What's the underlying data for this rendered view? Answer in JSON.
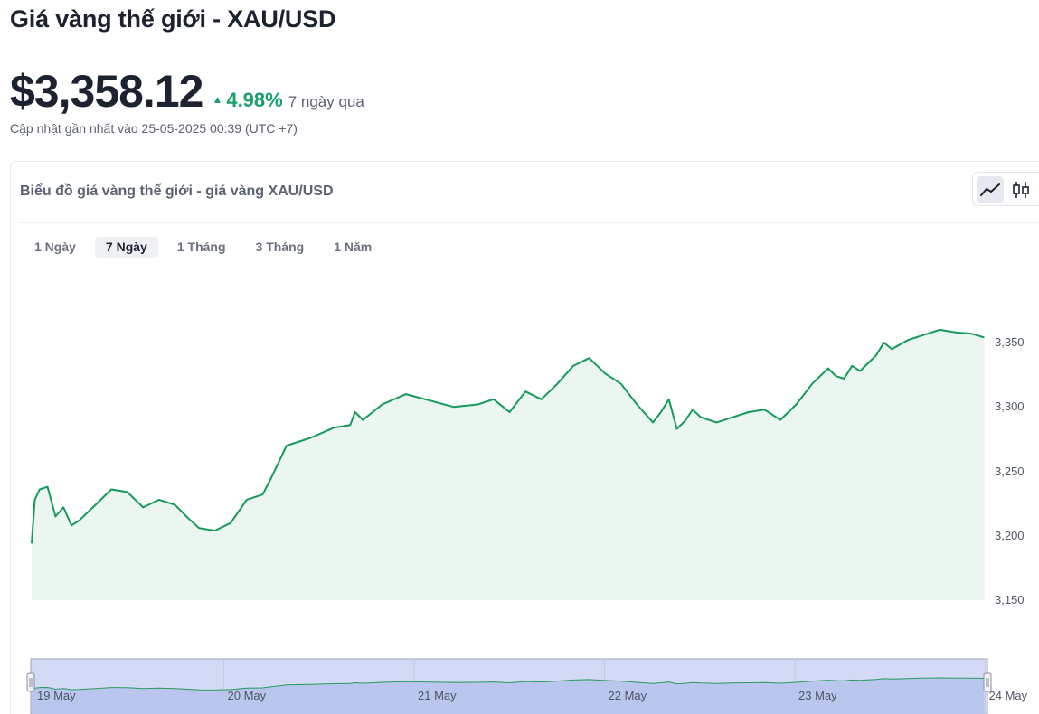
{
  "header": {
    "title": "Giá vàng thế giới - XAU/USD",
    "price": "$3,358.12",
    "change_pct": "4.98%",
    "change_period": "7 ngày qua",
    "updated": "Cập nhật gần nhất vào 25-05-2025 00:39 (UTC +7)",
    "change_direction": "up",
    "change_color": "#1aa06d"
  },
  "card": {
    "title": "Biểu đồ giá vàng thế giới - giá vàng XAU/USD",
    "chart_types": [
      {
        "name": "line",
        "icon": "line-chart-icon",
        "active": true
      },
      {
        "name": "candlestick",
        "icon": "candlestick-icon",
        "active": false
      }
    ]
  },
  "range_tabs": [
    {
      "label": "1 Ngày",
      "active": false
    },
    {
      "label": "7 Ngày",
      "active": true
    },
    {
      "label": "1 Tháng",
      "active": false
    },
    {
      "label": "3 Tháng",
      "active": false
    },
    {
      "label": "1 Năm",
      "active": false
    }
  ],
  "chart_data": {
    "type": "area",
    "line_color": "#149a5a",
    "fill_color": "#eaf6ef",
    "ylim": [
      3150,
      3360
    ],
    "y_ticks": [
      "3,350",
      "3,300",
      "3,250",
      "3,200",
      "3,150"
    ],
    "y_tick_values": [
      3350,
      3300,
      3250,
      3200,
      3150
    ],
    "x_ticks": [
      "19 May",
      "20 May",
      "21 May",
      "22 May",
      "23 May",
      "24 May"
    ],
    "xlim": [
      0,
      6
    ],
    "series": [
      {
        "x": [
          0,
          0.02,
          0.05,
          0.1,
          0.15,
          0.2,
          0.25,
          0.3,
          0.4,
          0.5,
          0.6,
          0.7,
          0.8,
          0.9,
          0.98,
          1.05,
          1.15,
          1.25,
          1.35,
          1.45,
          1.5,
          1.6,
          1.75,
          1.9,
          2.0,
          2.03,
          2.08,
          2.2,
          2.35,
          2.5,
          2.65,
          2.8,
          2.9,
          3.0,
          3.1,
          3.2,
          3.3,
          3.4,
          3.5,
          3.6,
          3.7,
          3.8,
          3.9,
          3.95,
          4.0,
          4.05,
          4.1,
          4.15,
          4.2,
          4.3,
          4.4,
          4.5,
          4.6,
          4.7,
          4.8,
          4.9,
          5.0,
          5.05,
          5.1,
          5.15,
          5.2,
          5.3,
          5.35,
          5.4,
          5.5,
          5.6,
          5.7,
          5.8,
          5.9,
          5.98
        ],
        "values": [
          3194,
          3228,
          3236,
          3238,
          3215,
          3222,
          3208,
          3212,
          3224,
          3236,
          3234,
          3222,
          3228,
          3224,
          3214,
          3206,
          3204,
          3210,
          3228,
          3232,
          3244,
          3270,
          3276,
          3284,
          3286,
          3296,
          3290,
          3302,
          3310,
          3305,
          3300,
          3302,
          3306,
          3296,
          3312,
          3306,
          3318,
          3332,
          3338,
          3326,
          3318,
          3302,
          3288,
          3296,
          3306,
          3283,
          3289,
          3298,
          3292,
          3288,
          3292,
          3296,
          3298,
          3290,
          3302,
          3318,
          3330,
          3324,
          3322,
          3332,
          3328,
          3340,
          3350,
          3345,
          3352,
          3356,
          3360,
          3358,
          3357,
          3354
        ]
      }
    ]
  },
  "navigator": {
    "handle_left": "left-handle",
    "handle_right": "right-handle"
  }
}
